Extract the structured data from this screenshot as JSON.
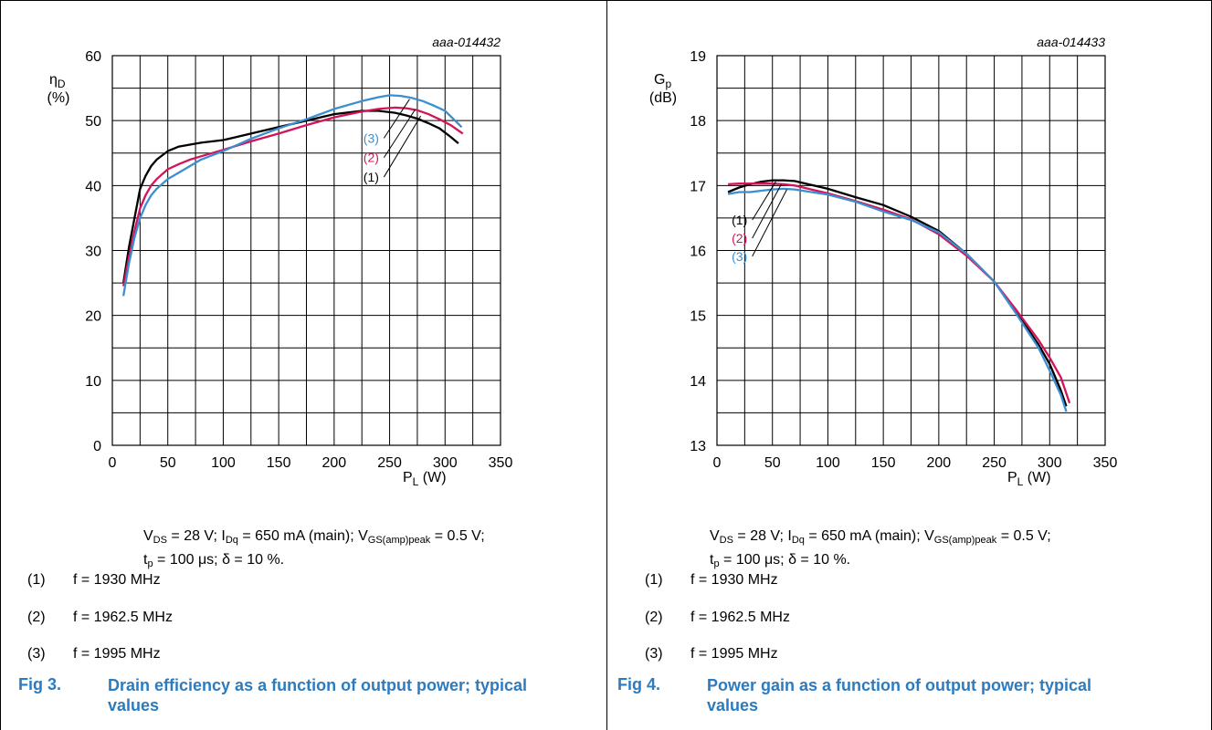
{
  "colors": {
    "series1": "#000000",
    "series2": "#d4145a",
    "series3": "#3b8fd1",
    "caption": "#2d7bbf"
  },
  "conditions": {
    "vds_sym": "V",
    "vds_sub": "DS",
    "vds_val": " = 28 V; ",
    "idq_sym": "I",
    "idq_sub": "Dq",
    "idq_val": " = 650 mA (main); ",
    "vgs_sym": "V",
    "vgs_sub": "GS(amp)peak",
    "vgs_val": " = 0.5 V;",
    "tp_sym": "t",
    "tp_sub": "p",
    "tp_val": " = 100 μs; δ = 10 %."
  },
  "notes": [
    {
      "num": "(1)",
      "text": "f = 1930 MHz"
    },
    {
      "num": "(2)",
      "text": "f = 1962.5 MHz"
    },
    {
      "num": "(3)",
      "text": "f = 1995 MHz"
    }
  ],
  "figures": [
    {
      "fig": "Fig 3.",
      "title": "Drain efficiency as a function of output power; typical values"
    },
    {
      "fig": "Fig 4.",
      "title": "Power gain as a function of output power; typical values"
    }
  ],
  "chart_data": [
    {
      "type": "line",
      "code": "aaa-014432",
      "ylabel": {
        "sym": "η",
        "sub": "D",
        "unit": "(%)"
      },
      "xlabel": {
        "sym": "P",
        "sub": "L",
        "unit": "(W)"
      },
      "xlim": [
        0,
        350
      ],
      "ylim": [
        0,
        60
      ],
      "xticks": [
        0,
        50,
        100,
        150,
        200,
        250,
        300,
        350
      ],
      "yticks": [
        0,
        10,
        20,
        30,
        40,
        50,
        60
      ],
      "grid": true,
      "series": [
        {
          "name": "(1)",
          "x": [
            10,
            15,
            20,
            25,
            30,
            35,
            40,
            50,
            60,
            70,
            80,
            100,
            125,
            150,
            175,
            200,
            225,
            240,
            255,
            265,
            275,
            285,
            295,
            305,
            312
          ],
          "y": [
            25,
            30.5,
            35,
            39.5,
            41.5,
            43,
            44,
            45.3,
            46,
            46.3,
            46.6,
            47,
            48,
            49,
            50,
            51,
            51.5,
            51.5,
            51.2,
            50.8,
            50.3,
            49.6,
            48.8,
            47.5,
            46.5
          ]
        },
        {
          "name": "(2)",
          "x": [
            10,
            15,
            20,
            25,
            30,
            35,
            40,
            50,
            60,
            70,
            80,
            100,
            125,
            150,
            175,
            200,
            225,
            240,
            255,
            265,
            275,
            285,
            295,
            305,
            316
          ],
          "y": [
            24.5,
            29,
            33,
            36.5,
            38.5,
            40,
            41,
            42.5,
            43.3,
            44,
            44.5,
            45.5,
            46.8,
            48,
            49.3,
            50.5,
            51.4,
            51.8,
            52,
            51.9,
            51.6,
            51,
            50.2,
            49.3,
            48
          ]
        },
        {
          "name": "(3)",
          "x": [
            10,
            15,
            20,
            25,
            30,
            35,
            40,
            50,
            60,
            70,
            80,
            100,
            125,
            150,
            175,
            200,
            225,
            240,
            250,
            260,
            270,
            280,
            290,
            300,
            315
          ],
          "y": [
            23,
            28,
            32,
            35,
            37,
            38.5,
            39.5,
            41,
            42,
            43,
            44,
            45.3,
            47.2,
            48.8,
            50.2,
            51.8,
            53,
            53.6,
            53.9,
            53.8,
            53.5,
            53,
            52.3,
            51.5,
            49
          ]
        }
      ],
      "labels": [
        {
          "text": "(3)",
          "series": 3,
          "x": 235,
          "y": 46.6,
          "lx": 268,
          "ly": 53.3
        },
        {
          "text": "(2)",
          "series": 2,
          "x": 235,
          "y": 43.6,
          "lx": 273,
          "ly": 51.7
        },
        {
          "text": "(1)",
          "series": 1,
          "x": 235,
          "y": 40.6,
          "lx": 278,
          "ly": 50.7
        }
      ]
    },
    {
      "type": "line",
      "code": "aaa-014433",
      "ylabel": {
        "sym": "G",
        "sub": "p",
        "unit": "(dB)"
      },
      "xlabel": {
        "sym": "P",
        "sub": "L",
        "unit": "(W)"
      },
      "xlim": [
        0,
        350
      ],
      "ylim": [
        13,
        19
      ],
      "xticks": [
        0,
        50,
        100,
        150,
        200,
        250,
        300,
        350
      ],
      "yticks": [
        13,
        14,
        15,
        16,
        17,
        18,
        19
      ],
      "grid": true,
      "series": [
        {
          "name": "(1)",
          "x": [
            10,
            20,
            30,
            40,
            50,
            60,
            70,
            100,
            125,
            150,
            175,
            200,
            225,
            250,
            270,
            290,
            300,
            310,
            315
          ],
          "y": [
            16.9,
            16.97,
            17.02,
            17.06,
            17.08,
            17.08,
            17.07,
            16.95,
            16.82,
            16.7,
            16.52,
            16.3,
            15.95,
            15.52,
            15.05,
            14.55,
            14.25,
            13.85,
            13.6
          ]
        },
        {
          "name": "(2)",
          "x": [
            10,
            20,
            30,
            40,
            50,
            60,
            70,
            100,
            125,
            150,
            175,
            200,
            225,
            250,
            270,
            290,
            300,
            310,
            318
          ],
          "y": [
            17.02,
            17.03,
            17.03,
            17.03,
            17.03,
            17.02,
            17.0,
            16.88,
            16.76,
            16.63,
            16.48,
            16.25,
            15.92,
            15.52,
            15.08,
            14.62,
            14.35,
            14.05,
            13.65
          ]
        },
        {
          "name": "(3)",
          "x": [
            10,
            20,
            30,
            40,
            50,
            60,
            70,
            100,
            125,
            150,
            175,
            200,
            225,
            250,
            270,
            290,
            300,
            310,
            315
          ],
          "y": [
            16.87,
            16.9,
            16.9,
            16.92,
            16.94,
            16.95,
            16.94,
            16.86,
            16.75,
            16.6,
            16.47,
            16.28,
            15.95,
            15.52,
            15.02,
            14.5,
            14.15,
            13.78,
            13.52
          ]
        }
      ],
      "labels": [
        {
          "text": "(1)",
          "series": 1,
          "x": 22,
          "y": 16.4,
          "lx": 53,
          "ly": 17.06
        },
        {
          "text": "(2)",
          "series": 2,
          "x": 22,
          "y": 16.12,
          "lx": 58,
          "ly": 17.02
        },
        {
          "text": "(3)",
          "series": 3,
          "x": 22,
          "y": 15.84,
          "lx": 63,
          "ly": 16.94
        }
      ]
    }
  ]
}
